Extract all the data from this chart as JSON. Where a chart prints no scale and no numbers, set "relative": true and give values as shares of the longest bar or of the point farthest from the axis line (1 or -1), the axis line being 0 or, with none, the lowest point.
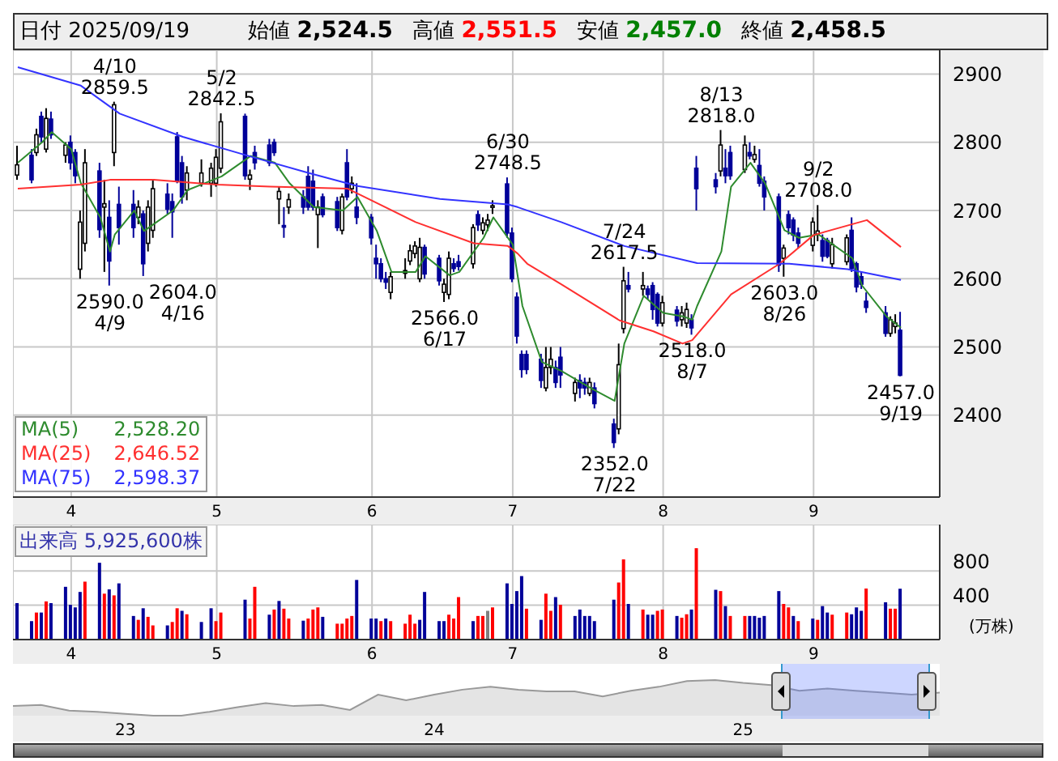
{
  "chart_data": [
    {
      "type": "candlestick",
      "title": "日付 2025/09/19",
      "legend": "bottom left",
      "marker": "none",
      "grid": true,
      "annotations": [
        "始値 2,524.5",
        "高値 2,551.5",
        "安値 2,457.0",
        "終値 2,458.5",
        "2,528.20",
        "2,646.52",
        "2,598.37",
        {
          "text": "4/10\n2859.5",
          "x": "2025-04-10",
          "y": 2859.5
        },
        {
          "text": "2590.0\n4/9",
          "x": "2025-04-09",
          "y": 2590
        },
        {
          "text": "2604.0\n4/16",
          "x": "2025-04-16",
          "y": 2604
        },
        {
          "text": "5/2\n2842.5",
          "x": "2025-05-02",
          "y": 2842.5
        },
        {
          "text": "2566.0\n6/17",
          "x": "2025-06-17",
          "y": 2566
        },
        {
          "text": "6/30\n2748.5",
          "x": "2025-06-30",
          "y": 2748.5
        },
        {
          "text": "2352.0\n7/22",
          "x": "2025-07-22",
          "y": 2352
        },
        {
          "text": "7/24\n2617.5",
          "x": "2025-07-24",
          "y": 2617.5
        },
        {
          "text": "2518.0\n8/7",
          "x": "2025-08-07",
          "y": 2518
        },
        {
          "text": "8/13\n2818.0",
          "x": "2025-08-13",
          "y": 2818
        },
        {
          "text": "2603.0\n8/26",
          "x": "2025-08-26",
          "y": 2603
        },
        {
          "text": "9/2\n2708.0",
          "x": "2025-09-02",
          "y": 2708
        },
        {
          "text": "2457.0\n9/19",
          "x": "2025-09-19",
          "y": 2457
        }
      ],
      "x": [
        "2025-03-21",
        "2025-03-24",
        "2025-03-25",
        "2025-03-26",
        "2025-03-27",
        "2025-03-28",
        "2025-03-31",
        "2025-04-01",
        "2025-04-02",
        "2025-04-03",
        "2025-04-04",
        "2025-04-07",
        "2025-04-08",
        "2025-04-09",
        "2025-04-10",
        "2025-04-11",
        "2025-04-14",
        "2025-04-15",
        "2025-04-16",
        "2025-04-17",
        "2025-04-18",
        "2025-04-21",
        "2025-04-22",
        "2025-04-23",
        "2025-04-24",
        "2025-04-25",
        "2025-04-28",
        "2025-04-30",
        "2025-05-01",
        "2025-05-02",
        "2025-05-07",
        "2025-05-08",
        "2025-05-09",
        "2025-05-12",
        "2025-05-13",
        "2025-05-14",
        "2025-05-15",
        "2025-05-16",
        "2025-05-19",
        "2025-05-20",
        "2025-05-21",
        "2025-05-22",
        "2025-05-23",
        "2025-05-26",
        "2025-05-27",
        "2025-05-28",
        "2025-05-29",
        "2025-05-30",
        "2025-06-02",
        "2025-06-03",
        "2025-06-04",
        "2025-06-05",
        "2025-06-06",
        "2025-06-09",
        "2025-06-10",
        "2025-06-11",
        "2025-06-12",
        "2025-06-13",
        "2025-06-16",
        "2025-06-17",
        "2025-06-18",
        "2025-06-19",
        "2025-06-20",
        "2025-06-23",
        "2025-06-24",
        "2025-06-25",
        "2025-06-26",
        "2025-06-27",
        "2025-06-30",
        "2025-07-01",
        "2025-07-02",
        "2025-07-03",
        "2025-07-04",
        "2025-07-07",
        "2025-07-08",
        "2025-07-09",
        "2025-07-10",
        "2025-07-11",
        "2025-07-14",
        "2025-07-15",
        "2025-07-16",
        "2025-07-17",
        "2025-07-18",
        "2025-07-22",
        "2025-07-23",
        "2025-07-24",
        "2025-07-25",
        "2025-07-28",
        "2025-07-29",
        "2025-07-30",
        "2025-07-31",
        "2025-08-01",
        "2025-08-04",
        "2025-08-05",
        "2025-08-06",
        "2025-08-07",
        "2025-08-08",
        "2025-08-12",
        "2025-08-13",
        "2025-08-14",
        "2025-08-15",
        "2025-08-18",
        "2025-08-19",
        "2025-08-20",
        "2025-08-21",
        "2025-08-22",
        "2025-08-25",
        "2025-08-26",
        "2025-08-27",
        "2025-08-28",
        "2025-08-29",
        "2025-09-01",
        "2025-09-02",
        "2025-09-03",
        "2025-09-04",
        "2025-09-05",
        "2025-09-08",
        "2025-09-09",
        "2025-09-10",
        "2025-09-11",
        "2025-09-12",
        "2025-09-16",
        "2025-09-17",
        "2025-09-18",
        "2025-09-19"
      ],
      "ohlc": [
        [
          2752,
          2795,
          2745,
          2767
        ],
        [
          2781,
          2790,
          2740,
          2745
        ],
        [
          2785,
          2820,
          2780,
          2811
        ],
        [
          2838,
          2845,
          2800,
          2808
        ],
        [
          2790,
          2850,
          2785,
          2835
        ],
        [
          2834,
          2845,
          2805,
          2811
        ],
        [
          2781,
          2800,
          2770,
          2796
        ],
        [
          2800,
          2810,
          2760,
          2770
        ],
        [
          2785,
          2790,
          2740,
          2751
        ],
        [
          2614,
          2700,
          2600,
          2683
        ],
        [
          2652,
          2790,
          2640,
          2770
        ],
        [
          2758,
          2770,
          2660,
          2672
        ],
        [
          2705,
          2745,
          2610,
          2710
        ],
        [
          2690,
          2715,
          2590,
          2626
        ],
        [
          2785,
          2859.5,
          2765,
          2855
        ],
        [
          2709,
          2735,
          2650,
          2675
        ],
        [
          2709,
          2730,
          2660,
          2675
        ],
        [
          2690,
          2715,
          2680,
          2705
        ],
        [
          2695,
          2700,
          2604,
          2622
        ],
        [
          2652,
          2715,
          2640,
          2705
        ],
        [
          2671,
          2745,
          2660,
          2732
        ],
        [
          2724,
          2740,
          2695,
          2702
        ],
        [
          2713,
          2725,
          2660,
          2698
        ],
        [
          2808,
          2815,
          2740,
          2743
        ],
        [
          2770,
          2780,
          2710,
          2720
        ],
        [
          2730,
          2765,
          2715,
          2755
        ],
        [
          2740,
          2775,
          2735,
          2755
        ],
        [
          2740,
          2770,
          2720,
          2762
        ],
        [
          2740,
          2790,
          2735,
          2778
        ],
        [
          2762,
          2842.5,
          2755,
          2830
        ],
        [
          2838,
          2842,
          2745,
          2751
        ],
        [
          2746,
          2760,
          2730,
          2752
        ],
        [
          2785,
          2795,
          2760,
          2770
        ],
        [
          2796,
          2805,
          2765,
          2770
        ],
        [
          2800,
          2805,
          2780,
          2785
        ],
        [
          2717,
          2735,
          2680,
          2728
        ],
        [
          2678,
          2705,
          2660,
          2676
        ],
        [
          2705,
          2725,
          2695,
          2716
        ],
        [
          2720,
          2730,
          2695,
          2705
        ],
        [
          2750,
          2765,
          2700,
          2705
        ],
        [
          2743,
          2760,
          2700,
          2705
        ],
        [
          2694,
          2715,
          2645,
          2705
        ],
        [
          2720,
          2725,
          2690,
          2694
        ],
        [
          2713,
          2720,
          2670,
          2675
        ],
        [
          2671,
          2725,
          2665,
          2720
        ],
        [
          2770,
          2790,
          2715,
          2720
        ],
        [
          2732,
          2750,
          2725,
          2740
        ],
        [
          2705,
          2740,
          2680,
          2690
        ],
        [
          2690,
          2695,
          2650,
          2660
        ],
        [
          2630,
          2650,
          2600,
          2622
        ],
        [
          2622,
          2630,
          2595,
          2600
        ],
        [
          2600,
          2610,
          2585,
          2595
        ],
        [
          2580,
          2610,
          2570,
          2603
        ],
        [
          2608,
          2630,
          2600,
          2612
        ],
        [
          2626,
          2650,
          2620,
          2641
        ],
        [
          2637,
          2655,
          2630,
          2648
        ],
        [
          2600,
          2660,
          2595,
          2646
        ],
        [
          2646,
          2650,
          2600,
          2607
        ],
        [
          2630,
          2635,
          2590,
          2597
        ],
        [
          2580,
          2600,
          2566,
          2592
        ],
        [
          2577,
          2640,
          2570,
          2630
        ],
        [
          2622,
          2630,
          2610,
          2615
        ],
        [
          2625,
          2635,
          2612,
          2618
        ],
        [
          2622,
          2680,
          2615,
          2675
        ],
        [
          2694,
          2700,
          2670,
          2679
        ],
        [
          2671,
          2690,
          2665,
          2682
        ],
        [
          2679,
          2695,
          2670,
          2686
        ],
        [
          2705,
          2715,
          2695,
          2707
        ],
        [
          2739,
          2748.5,
          2660,
          2667
        ],
        [
          2667,
          2675,
          2595,
          2600
        ],
        [
          2573,
          2580,
          2505,
          2516
        ],
        [
          2489,
          2495,
          2455,
          2467
        ],
        [
          2489,
          2495,
          2460,
          2467
        ],
        [
          2482,
          2490,
          2440,
          2451
        ],
        [
          2440,
          2500,
          2435,
          2470
        ],
        [
          2470,
          2500,
          2460,
          2482
        ],
        [
          2470,
          2480,
          2440,
          2448
        ],
        [
          2485,
          2500,
          2440,
          2459
        ],
        [
          2432,
          2455,
          2420,
          2448
        ],
        [
          2451,
          2460,
          2425,
          2440
        ],
        [
          2448,
          2455,
          2430,
          2440
        ],
        [
          2432,
          2455,
          2428,
          2448
        ],
        [
          2440,
          2448,
          2410,
          2417
        ],
        [
          2387,
          2395,
          2352,
          2360
        ],
        [
          2380,
          2505,
          2372,
          2474
        ],
        [
          2527,
          2617.5,
          2520,
          2597
        ],
        [
          2590,
          2610,
          2580,
          2585
        ],
        [
          2585,
          2610,
          2575,
          2590
        ],
        [
          2585,
          2590,
          2570,
          2577
        ],
        [
          2590,
          2595,
          2540,
          2555
        ],
        [
          2577,
          2580,
          2530,
          2535
        ],
        [
          2535,
          2575,
          2530,
          2565
        ],
        [
          2554,
          2560,
          2530,
          2538
        ],
        [
          2540,
          2560,
          2530,
          2550
        ],
        [
          2535,
          2565,
          2528,
          2555
        ],
        [
          2540,
          2548,
          2518,
          2528
        ],
        [
          2762,
          2780,
          2700,
          2732
        ],
        [
          2745,
          2755,
          2725,
          2735
        ],
        [
          2758,
          2818,
          2750,
          2796
        ],
        [
          2762,
          2790,
          2740,
          2751
        ],
        [
          2785,
          2795,
          2745,
          2751
        ],
        [
          2760,
          2810,
          2755,
          2796
        ],
        [
          2785,
          2800,
          2775,
          2780
        ],
        [
          2775,
          2795,
          2770,
          2782
        ],
        [
          2766,
          2790,
          2735,
          2740
        ],
        [
          2743,
          2750,
          2700,
          2720
        ],
        [
          2720,
          2725,
          2610,
          2620
        ],
        [
          2630,
          2650,
          2603,
          2645
        ],
        [
          2694,
          2700,
          2665,
          2675
        ],
        [
          2686,
          2690,
          2655,
          2664
        ],
        [
          2667,
          2675,
          2645,
          2652
        ],
        [
          2649,
          2690,
          2640,
          2683
        ],
        [
          2665,
          2708,
          2655,
          2670
        ],
        [
          2656,
          2665,
          2625,
          2633
        ],
        [
          2656,
          2660,
          2630,
          2633
        ],
        [
          2622,
          2660,
          2615,
          2650
        ],
        [
          2625,
          2665,
          2620,
          2660
        ],
        [
          2671,
          2690,
          2610,
          2615
        ],
        [
          2622,
          2625,
          2580,
          2588
        ],
        [
          2603,
          2610,
          2585,
          2592
        ],
        [
          2567,
          2580,
          2550,
          2558
        ],
        [
          2550,
          2560,
          2515,
          2520
        ],
        [
          2520,
          2545,
          2515,
          2540
        ],
        [
          2530,
          2548,
          2520,
          2535
        ],
        [
          2524.5,
          2551.5,
          2457,
          2458.5
        ]
      ],
      "series": [
        {
          "type": "line",
          "name": "MA(5)",
          "color": "#2e8b2e",
          "x": [
            "2025-03-21",
            "2025-03-26",
            "2025-03-28",
            "2025-04-01",
            "2025-04-03",
            "2025-04-07",
            "2025-04-09",
            "2025-04-10",
            "2025-04-14",
            "2025-04-16",
            "2025-04-18",
            "2025-04-22",
            "2025-04-25",
            "2025-05-02",
            "2025-05-08",
            "2025-05-13",
            "2025-05-16",
            "2025-05-21",
            "2025-05-27",
            "2025-05-30",
            "2025-06-03",
            "2025-06-06",
            "2025-06-11",
            "2025-06-13",
            "2025-06-18",
            "2025-06-20",
            "2025-06-25",
            "2025-06-27",
            "2025-07-01",
            "2025-07-03",
            "2025-07-07",
            "2025-07-11",
            "2025-07-17",
            "2025-07-22",
            "2025-07-24",
            "2025-07-28",
            "2025-08-01",
            "2025-08-05",
            "2025-08-07",
            "2025-08-08",
            "2025-08-13",
            "2025-08-15",
            "2025-08-19",
            "2025-08-22",
            "2025-08-26",
            "2025-08-29",
            "2025-09-02",
            "2025-09-05",
            "2025-09-09",
            "2025-09-11",
            "2025-09-16",
            "2025-09-19"
          ],
          "values": [
            2770,
            2800,
            2815,
            2790,
            2740,
            2690,
            2640,
            2665,
            2700,
            2670,
            2680,
            2700,
            2730,
            2750,
            2780,
            2770,
            2740,
            2705,
            2700,
            2720,
            2670,
            2610,
            2610,
            2633,
            2605,
            2610,
            2660,
            2690,
            2650,
            2560,
            2478,
            2465,
            2440,
            2421,
            2505,
            2575,
            2550,
            2545,
            2540,
            2560,
            2640,
            2735,
            2770,
            2740,
            2671,
            2660,
            2665,
            2650,
            2630,
            2590,
            2545,
            2528.2
          ]
        },
        {
          "type": "line",
          "name": "MA(25)",
          "color": "#ff3030",
          "x": [
            "2025-03-21",
            "2025-04-03",
            "2025-04-09",
            "2025-04-18",
            "2025-05-01",
            "2025-05-12",
            "2025-05-28",
            "2025-06-11",
            "2025-06-23",
            "2025-06-30",
            "2025-07-02",
            "2025-07-04",
            "2025-07-11",
            "2025-07-23",
            "2025-07-30",
            "2025-08-05",
            "2025-08-07",
            "2025-08-15",
            "2025-08-25",
            "2025-09-01",
            "2025-09-12",
            "2025-09-19"
          ],
          "values": [
            2732,
            2738,
            2745,
            2745,
            2738,
            2735,
            2732,
            2683,
            2652,
            2648,
            2637,
            2622,
            2592,
            2539,
            2523,
            2505,
            2510,
            2577,
            2622,
            2664,
            2686,
            2646.52
          ]
        },
        {
          "type": "line",
          "name": "MA(75)",
          "color": "#3333ff",
          "x": [
            "2025-03-21",
            "2025-04-03",
            "2025-04-11",
            "2025-04-24",
            "2025-05-09",
            "2025-05-20",
            "2025-05-30",
            "2025-06-16",
            "2025-06-30",
            "2025-07-02",
            "2025-07-11",
            "2025-07-24",
            "2025-08-08",
            "2025-08-27",
            "2025-09-08",
            "2025-09-19"
          ],
          "values": [
            2910,
            2883,
            2842,
            2808,
            2777,
            2755,
            2736,
            2717,
            2709,
            2705,
            2683,
            2648,
            2623,
            2622,
            2614,
            2598.37
          ]
        }
      ],
      "ylim": [
        2280,
        2935
      ],
      "yticks": [
        2400,
        2500,
        2600,
        2700,
        2800,
        2900
      ],
      "xlim": [
        "2025-03-20",
        "2025-09-27"
      ],
      "xticks": [
        {
          "value": "2025-04-01",
          "label": "4"
        },
        {
          "value": "2025-05-01",
          "label": "5"
        },
        {
          "value": "2025-06-02",
          "label": "6"
        },
        {
          "value": "2025-07-01",
          "label": "7"
        },
        {
          "value": "2025-08-01",
          "label": "8"
        },
        {
          "value": "2025-09-01",
          "label": "9"
        }
      ]
    },
    {
      "type": "bar",
      "title": "出来高 5,925,600株",
      "ylabel": "(万株)",
      "grid": true,
      "x": [
        "2025-03-21",
        "2025-03-24",
        "2025-03-25",
        "2025-03-26",
        "2025-03-27",
        "2025-03-28",
        "2025-03-31",
        "2025-04-01",
        "2025-04-02",
        "2025-04-03",
        "2025-04-04",
        "2025-04-07",
        "2025-04-08",
        "2025-04-09",
        "2025-04-10",
        "2025-04-11",
        "2025-04-14",
        "2025-04-15",
        "2025-04-16",
        "2025-04-17",
        "2025-04-18",
        "2025-04-21",
        "2025-04-22",
        "2025-04-23",
        "2025-04-24",
        "2025-04-25",
        "2025-04-28",
        "2025-04-30",
        "2025-05-01",
        "2025-05-02",
        "2025-05-07",
        "2025-05-08",
        "2025-05-09",
        "2025-05-12",
        "2025-05-13",
        "2025-05-14",
        "2025-05-15",
        "2025-05-16",
        "2025-05-19",
        "2025-05-20",
        "2025-05-21",
        "2025-05-22",
        "2025-05-23",
        "2025-05-26",
        "2025-05-27",
        "2025-05-28",
        "2025-05-29",
        "2025-05-30",
        "2025-06-02",
        "2025-06-03",
        "2025-06-04",
        "2025-06-05",
        "2025-06-06",
        "2025-06-09",
        "2025-06-10",
        "2025-06-11",
        "2025-06-12",
        "2025-06-13",
        "2025-06-16",
        "2025-06-17",
        "2025-06-18",
        "2025-06-19",
        "2025-06-20",
        "2025-06-23",
        "2025-06-24",
        "2025-06-25",
        "2025-06-26",
        "2025-06-27",
        "2025-06-30",
        "2025-07-01",
        "2025-07-02",
        "2025-07-03",
        "2025-07-04",
        "2025-07-07",
        "2025-07-08",
        "2025-07-09",
        "2025-07-10",
        "2025-07-11",
        "2025-07-14",
        "2025-07-15",
        "2025-07-16",
        "2025-07-17",
        "2025-07-18",
        "2025-07-22",
        "2025-07-23",
        "2025-07-24",
        "2025-07-25",
        "2025-07-28",
        "2025-07-29",
        "2025-07-30",
        "2025-07-31",
        "2025-08-01",
        "2025-08-04",
        "2025-08-05",
        "2025-08-06",
        "2025-08-07",
        "2025-08-08",
        "2025-08-12",
        "2025-08-13",
        "2025-08-14",
        "2025-08-15",
        "2025-08-18",
        "2025-08-19",
        "2025-08-20",
        "2025-08-21",
        "2025-08-22",
        "2025-08-25",
        "2025-08-26",
        "2025-08-27",
        "2025-08-28",
        "2025-08-29",
        "2025-09-01",
        "2025-09-02",
        "2025-09-03",
        "2025-09-04",
        "2025-09-05",
        "2025-09-08",
        "2025-09-09",
        "2025-09-10",
        "2025-09-11",
        "2025-09-12",
        "2025-09-16",
        "2025-09-17",
        "2025-09-18",
        "2025-09-19"
      ],
      "values": [
        425,
        215,
        315,
        315,
        445,
        425,
        615,
        405,
        375,
        555,
        675,
        895,
        535,
        585,
        515,
        655,
        275,
        230,
        365,
        265,
        165,
        165,
        205,
        365,
        335,
        295,
        205,
        365,
        215,
        315,
        465,
        245,
        615,
        290,
        350,
        450,
        360,
        245,
        220,
        245,
        350,
        375,
        265,
        185,
        185,
        245,
        275,
        695,
        245,
        245,
        215,
        245,
        215,
        185,
        290,
        185,
        230,
        555,
        215,
        215,
        290,
        245,
        495,
        215,
        275,
        275,
        335,
        375,
        655,
        415,
        565,
        740,
        360,
        230,
        535,
        335,
        495,
        405,
        275,
        350,
        275,
        275,
        215,
        465,
        665,
        935,
        415,
        350,
        290,
        290,
        335,
        350,
        275,
        255,
        295,
        350,
        1065,
        580,
        565,
        390,
        275,
        275,
        275,
        275,
        255,
        275,
        565,
        415,
        375,
        275,
        215,
        245,
        230,
        390,
        315,
        290,
        315,
        295,
        375,
        335,
        595,
        435,
        360,
        360,
        592.56
      ],
      "colors": [
        "#000099",
        "#000099",
        "#ff0000",
        "#000099",
        "#ff0000",
        "#000099",
        "#000099",
        "#000099",
        "#000099",
        "#000099",
        "#ff0000",
        "#000099",
        "#ff0000",
        "#000099",
        "#ff0000",
        "#000099",
        "#000099",
        "#ff0000",
        "#000099",
        "#ff0000",
        "#ff0000",
        "#000099",
        "#ff0000",
        "#ff0000",
        "#000099",
        "#ff0000",
        "#000099",
        "#000099",
        "#ff0000",
        "#ff0000",
        "#000099",
        "#ff0000",
        "#ff0000",
        "#000099",
        "#ff0000",
        "#000099",
        "#ff0000",
        "#ff0000",
        "#000099",
        "#ff0000",
        "#ff0000",
        "#ff0000",
        "#000099",
        "#ff0000",
        "#ff0000",
        "#ff0000",
        "#ff0000",
        "#000099",
        "#000099",
        "#000099",
        "#ff0000",
        "#000099",
        "#ff0000",
        "#ff0000",
        "#ff0000",
        "#ff0000",
        "#000099",
        "#000099",
        "#000099",
        "#000099",
        "#ff0000",
        "#ff0000",
        "#ff0000",
        "#000099",
        "#ff0000",
        "#ff0000",
        "#808080",
        "#ff0000",
        "#000099",
        "#000099",
        "#000099",
        "#000099",
        "#ff0000",
        "#000099",
        "#ff0000",
        "#ff0000",
        "#000099",
        "#ff0000",
        "#000099",
        "#000099",
        "#000099",
        "#000099",
        "#000099",
        "#000099",
        "#ff0000",
        "#ff0000",
        "#000099",
        "#ff0000",
        "#000099",
        "#000099",
        "#ff0000",
        "#ff0000",
        "#000099",
        "#ff0000",
        "#ff0000",
        "#000099",
        "#ff0000",
        "#000099",
        "#ff0000",
        "#000099",
        "#ff0000",
        "#ff0000",
        "#000099",
        "#000099",
        "#000099",
        "#000099",
        "#000099",
        "#ff0000",
        "#ff0000",
        "#000099",
        "#ff0000",
        "#000099",
        "#ff0000",
        "#000099",
        "#000099",
        "#ff0000",
        "#ff0000",
        "#000099",
        "#000099",
        "#000099",
        "#ff0000",
        "#000099",
        "#ff0000",
        "#ff0000",
        "#000099"
      ],
      "ylim": [
        0,
        1340
      ],
      "yticks": [
        400,
        800
      ],
      "xlim": [
        "2025-03-20",
        "2025-09-27"
      ],
      "xticks": [
        {
          "value": "2025-04-01",
          "label": "4"
        },
        {
          "value": "2025-05-01",
          "label": "5"
        },
        {
          "value": "2025-06-02",
          "label": "6"
        },
        {
          "value": "2025-07-01",
          "label": "7"
        },
        {
          "value": "2025-08-01",
          "label": "8"
        },
        {
          "value": "2025-09-01",
          "label": "9"
        }
      ]
    },
    {
      "type": "area",
      "relative": true,
      "color": "#999999",
      "categories": [
        null,
        null,
        null,
        null,
        "23",
        null,
        null,
        null,
        null,
        null,
        null,
        null,
        null,
        null,
        null,
        "24",
        null,
        null,
        null,
        null,
        null,
        null,
        null,
        null,
        null,
        null,
        "25",
        null,
        null,
        null,
        null,
        null,
        null,
        null
      ],
      "values": [
        0.27,
        0.3,
        0.14,
        0.11,
        0.05,
        0,
        0,
        0.11,
        0.24,
        0.35,
        0.27,
        0.3,
        0.16,
        0.59,
        0.43,
        0.59,
        0.73,
        0.81,
        0.73,
        0.68,
        0.68,
        0.54,
        0.7,
        0.81,
        0.97,
        1,
        0.92,
        0.86,
        0.7,
        0.76,
        0.7,
        0.65,
        0.59,
        0.65
      ]
    }
  ]
}
